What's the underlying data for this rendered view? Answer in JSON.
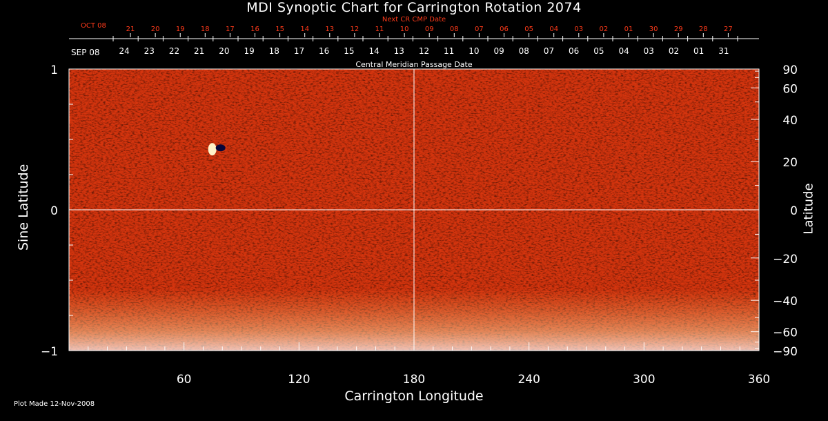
{
  "chart_data": {
    "type": "heatmap",
    "title": "MDI Synoptic Chart for Carrington Rotation 2074",
    "xlabel": "Carrington Longitude",
    "ylabel_left": "Sine Latitude",
    "ylabel_right": "Latitude",
    "xlim": [
      0,
      360
    ],
    "ylim": [
      -1,
      1
    ],
    "x_ticks": [
      60,
      120,
      180,
      240,
      300,
      360
    ],
    "x_tick_labels": [
      "60",
      "120",
      "180",
      "240",
      "300",
      "360"
    ],
    "y_left_ticks": [
      1,
      0,
      -1
    ],
    "y_left_tick_labels": [
      "1",
      "0",
      "−1"
    ],
    "y_right_ticks": [
      90,
      60,
      40,
      20,
      0,
      -20,
      -40,
      -60,
      -90
    ],
    "y_right_tick_labels": [
      "90",
      "60",
      "40",
      "20",
      "0",
      "−20",
      "−40",
      "−60",
      "−90"
    ],
    "grid_lines": {
      "longitude": 180,
      "sine_latitude": 0
    },
    "cmp_axis_label": "Central Meridian Passage Date",
    "cmp_start_label": "SEP 08",
    "cmp_days": [
      "24",
      "23",
      "22",
      "21",
      "20",
      "19",
      "18",
      "17",
      "16",
      "15",
      "14",
      "13",
      "12",
      "11",
      "10",
      "09",
      "08",
      "07",
      "06",
      "05",
      "04",
      "03",
      "02",
      "01",
      "31"
    ],
    "next_cmp_axis_label": "Next CR CMP Date",
    "next_cmp_start_label": "OCT 08",
    "next_cmp_days": [
      "21",
      "20",
      "19",
      "18",
      "17",
      "16",
      "15",
      "14",
      "13",
      "12",
      "11",
      "10",
      "09",
      "08",
      "07",
      "06",
      "05",
      "04",
      "03",
      "02",
      "01",
      "30",
      "29",
      "28",
      "27"
    ],
    "colormap": [
      "#0b0b5a",
      "#6a1a78",
      "#c8200c",
      "#ff4a10",
      "#ffaa30",
      "#ffffff"
    ],
    "features": [
      {
        "label": "bipolar active region",
        "longitude": 78,
        "sine_latitude": 0.44
      }
    ],
    "footer": "Plot Made 12-Nov-2008"
  },
  "colors": {
    "background": "#000000",
    "text": "#ffffff",
    "next_cmp_text": "#ff3a1a",
    "field_base": "#d9360f"
  }
}
